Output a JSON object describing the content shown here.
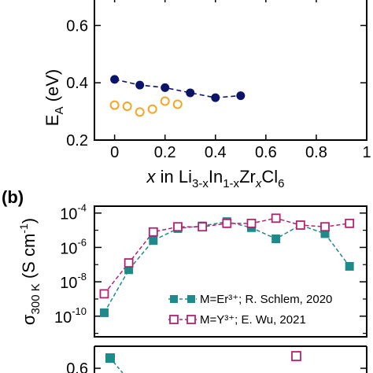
{
  "colors": {
    "navy": "#0b1466",
    "orange": "#f5a524",
    "teal": "#1f8a8a",
    "magenta": "#b0246e"
  },
  "chart_data": [
    {
      "type": "line",
      "panel_label": "",
      "xlabel_parts": [
        "x",
        " in Li",
        "3-x",
        "In",
        "1-x",
        "Zr",
        "x",
        "Cl",
        "6"
      ],
      "ylabel_parts": [
        "E",
        "A",
        " (eV)"
      ],
      "xlim": [
        -0.08,
        1.0
      ],
      "ylim": [
        0.2,
        0.7
      ],
      "x_ticks": [
        0,
        0.2,
        0.4,
        0.6,
        0.8,
        1
      ],
      "x_tick_labels": [
        "0",
        "0.2",
        "0.4",
        "0.6",
        "0.8",
        "1"
      ],
      "y_ticks": [
        0.2,
        0.4,
        0.6
      ],
      "y_tick_labels": [
        "0.2",
        "0.4",
        "0.6"
      ],
      "series": [
        {
          "marker": "filled-circle",
          "line": "dashed",
          "x": [
            0,
            0.1,
            0.2,
            0.3,
            0.4,
            0.5
          ],
          "y": [
            0.412,
            0.392,
            0.383,
            0.365,
            0.348,
            0.355
          ]
        },
        {
          "marker": "open-circle",
          "line": "none",
          "x": [
            0,
            0.05,
            0.1,
            0.15,
            0.2,
            0.25
          ],
          "y": [
            0.322,
            0.318,
            0.298,
            0.308,
            0.336,
            0.325
          ]
        }
      ]
    },
    {
      "type": "line",
      "panel_label": "(b)",
      "ylabel_parts": [
        "σ",
        "300 K",
        " (S cm",
        "-1",
        ")"
      ],
      "yscale": "log",
      "ylim_exp": [
        -11.2,
        -3.6
      ],
      "y_tick_exps": [
        -4,
        -6,
        -8,
        -10
      ],
      "grid": false,
      "legend_position": "bottom-right",
      "series": [
        {
          "name": "M=Er³⁺; R. Schlem, 2020",
          "marker": "filled-square",
          "line": "dashed",
          "x": [
            0,
            0.1,
            0.2,
            0.3,
            0.4,
            0.5,
            0.6,
            0.7,
            0.8,
            0.9,
            1.0
          ],
          "log10_y": [
            -9.8,
            -7.3,
            -5.6,
            -4.9,
            -4.75,
            -4.5,
            -4.85,
            -5.5,
            -4.7,
            -5.2,
            -7.1
          ]
        },
        {
          "name": "M=Y³⁺; E. Wu, 2021",
          "marker": "open-square",
          "line": "dashed",
          "x": [
            0,
            0.1,
            0.2,
            0.3,
            0.4,
            0.5,
            0.6,
            0.7,
            0.8,
            0.9,
            1.0
          ],
          "log10_y": [
            -8.7,
            -6.9,
            -5.1,
            -4.8,
            -4.8,
            -4.6,
            -4.6,
            -4.3,
            -4.7,
            -4.8,
            -4.6
          ]
        }
      ]
    },
    {
      "type": "line",
      "panel_label": "",
      "y_tick_labels": [
        "0.6"
      ],
      "series": [
        {
          "marker": "filled-square",
          "x": [
            0
          ],
          "y": [
            0.64
          ]
        },
        {
          "marker": "open-square",
          "x": [
            0.8
          ],
          "y": [
            0.66
          ]
        }
      ]
    }
  ]
}
